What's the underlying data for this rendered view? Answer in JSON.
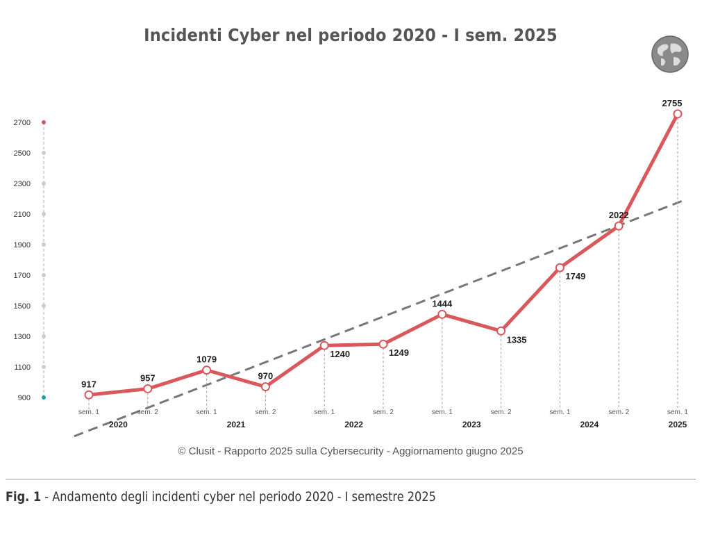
{
  "chart_data": {
    "type": "line",
    "title": "Incidenti Cyber nel periodo 2020 - I sem. 2025",
    "categories": [
      "sem. 1",
      "sem. 2",
      "sem. 1",
      "sem. 2",
      "sem. 1",
      "sem. 2",
      "sem. 1",
      "sem. 2",
      "sem. 1",
      "sem. 2",
      "sem. 1"
    ],
    "years": [
      {
        "label": "2020",
        "index": 0.5
      },
      {
        "label": "2021",
        "index": 2.5
      },
      {
        "label": "2022",
        "index": 4.5
      },
      {
        "label": "2023",
        "index": 6.5
      },
      {
        "label": "2024",
        "index": 8.5
      },
      {
        "label": "2025",
        "index": 10
      }
    ],
    "series": [
      {
        "values": [
          917,
          957,
          1079,
          970,
          1240,
          1249,
          1444,
          1335,
          1749,
          2022,
          2755
        ],
        "color": "#d9585b",
        "data_labels": true
      }
    ],
    "trendline": {
      "type": "linear",
      "style": "dashed",
      "color": "#777777"
    },
    "y_ticks": [
      900,
      1100,
      1300,
      1500,
      1700,
      1900,
      2100,
      2300,
      2500,
      2700
    ],
    "ylim": [
      900,
      2700
    ],
    "grid": false,
    "axis_marker_colors": {
      "top": "#d9585b",
      "bottom": "#1aa3a3",
      "middle": "#cccccc"
    }
  },
  "icons": {
    "globe": "globe-icon"
  },
  "credit": "© Clusit - Rapporto 2025 sulla Cybersecurity - Aggiornamento giugno 2025",
  "caption": {
    "label": "Fig. 1",
    "text": " - Andamento degli incidenti cyber nel periodo 2020 - I semestre 2025"
  }
}
